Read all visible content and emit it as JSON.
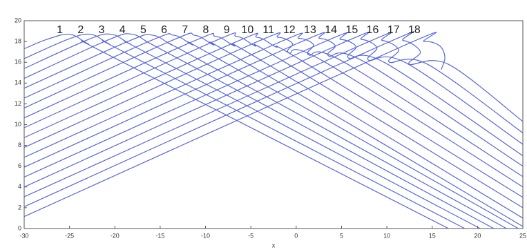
{
  "chart_data": {
    "type": "line",
    "xlabel": "x",
    "color": "#5565dd",
    "xlim": [
      -30,
      25
    ],
    "ylim": [
      0,
      20
    ],
    "xticks": [
      -30,
      -25,
      -20,
      -15,
      -10,
      -5,
      0,
      5,
      10,
      15,
      20,
      25
    ],
    "yticks": [
      0,
      2,
      4,
      6,
      8,
      10,
      12,
      14,
      16,
      18,
      20
    ],
    "series": [
      {
        "name": "1",
        "x": [
          -30,
          -27.5,
          -25,
          -23,
          -20,
          16.8
        ],
        "values": [
          17.3,
          18.2,
          18.7,
          17.8,
          16.4,
          0
        ]
      },
      {
        "name": "2",
        "x": [
          -30,
          -25.2,
          -22.7,
          -20.7,
          -17.7,
          18.6
        ],
        "values": [
          16.35,
          18.2,
          18.7,
          17.8,
          16.4,
          0
        ]
      },
      {
        "name": "3",
        "x": [
          -30,
          -22.9,
          -20.4,
          -18.4,
          -15.4,
          20.3
        ],
        "values": [
          15.4,
          18.2,
          18.7,
          17.8,
          16.4,
          0
        ]
      },
      {
        "name": "4",
        "x": [
          -30,
          -20.6,
          -18.1,
          -16.1,
          -13.1,
          21.8
        ],
        "values": [
          14.45,
          18.2,
          18.7,
          17.8,
          16.4,
          0
        ]
      },
      {
        "name": "5",
        "x": [
          -30,
          -18.3,
          -15.8,
          -13.8,
          -10.8,
          23.2
        ],
        "values": [
          13.5,
          18.1,
          18.6,
          17.7,
          16.3,
          0
        ]
      },
      {
        "name": "6",
        "x": [
          -30,
          -16,
          -13.5,
          -11.5,
          -8.5,
          24.5
        ],
        "values": [
          12.55,
          18.1,
          18.6,
          17.7,
          16.3,
          0
        ]
      },
      {
        "name": "7",
        "x": [
          -30,
          -13.7,
          -11.2,
          -9.2,
          -6.2,
          25
        ],
        "values": [
          11.6,
          18.1,
          18.6,
          17.7,
          16.3,
          0.2
        ]
      },
      {
        "name": "8",
        "x": [
          -30,
          -11.4,
          -8.9,
          -6.9,
          -3.9,
          25
        ],
        "values": [
          10.65,
          18,
          18.5,
          17.6,
          16.2,
          1.0
        ]
      },
      {
        "name": "9",
        "x": [
          -30,
          -9.1,
          -6.6,
          -4.6,
          -1.6,
          25
        ],
        "values": [
          9.7,
          18,
          18.5,
          17.6,
          16.2,
          2.0
        ]
      },
      {
        "name": "10",
        "x": [
          -30,
          -6.8,
          -4.3,
          -2.3,
          0.7,
          25
        ],
        "values": [
          8.75,
          17.9,
          18.4,
          17.5,
          16.1,
          3.0
        ]
      },
      {
        "name": "11",
        "x": [
          -30,
          -4.5,
          -2.0,
          -0.4,
          -0.8,
          3.0,
          25
        ],
        "values": [
          7.8,
          17.9,
          18.4,
          17.8,
          16.9,
          16.1,
          4.0
        ]
      },
      {
        "name": "12",
        "x": [
          -30,
          -2.2,
          0.3,
          1.9,
          1.4,
          5.3,
          25
        ],
        "values": [
          6.85,
          17.8,
          18.3,
          17.7,
          16.7,
          16.0,
          5.0
        ]
      },
      {
        "name": "13",
        "x": [
          -30,
          0.1,
          2.6,
          4.3,
          3.6,
          7.6,
          25
        ],
        "values": [
          5.9,
          17.8,
          18.3,
          17.6,
          16.6,
          16.0,
          6.0
        ]
      },
      {
        "name": "14",
        "x": [
          -30,
          2.4,
          4.9,
          6.6,
          5.8,
          9.9,
          25
        ],
        "values": [
          4.95,
          17.7,
          18.2,
          17.5,
          16.4,
          15.9,
          7.0
        ]
      },
      {
        "name": "15",
        "x": [
          -30,
          4.7,
          7.2,
          8.9,
          8.0,
          12.2,
          25
        ],
        "values": [
          4.0,
          17.7,
          18.2,
          17.4,
          16.2,
          15.9,
          8.1
        ]
      },
      {
        "name": "16",
        "x": [
          -30,
          7.0,
          9.5,
          11.3,
          10.3,
          14.5,
          25
        ],
        "values": [
          3.05,
          17.6,
          18.1,
          17.2,
          16.0,
          15.8,
          9.2
        ]
      },
      {
        "name": "17",
        "x": [
          -30,
          9.3,
          11.8,
          13.7,
          12.5,
          16.8,
          25
        ],
        "values": [
          2.1,
          17.6,
          18.1,
          17.0,
          15.8,
          15.8,
          10.3
        ]
      },
      {
        "name": "18",
        "x": [
          -30,
          11.6,
          14.1,
          15.8,
          16.4,
          16.0
        ],
        "values": [
          1.15,
          17.5,
          18,
          17.6,
          16.5,
          15.3
        ]
      }
    ]
  }
}
